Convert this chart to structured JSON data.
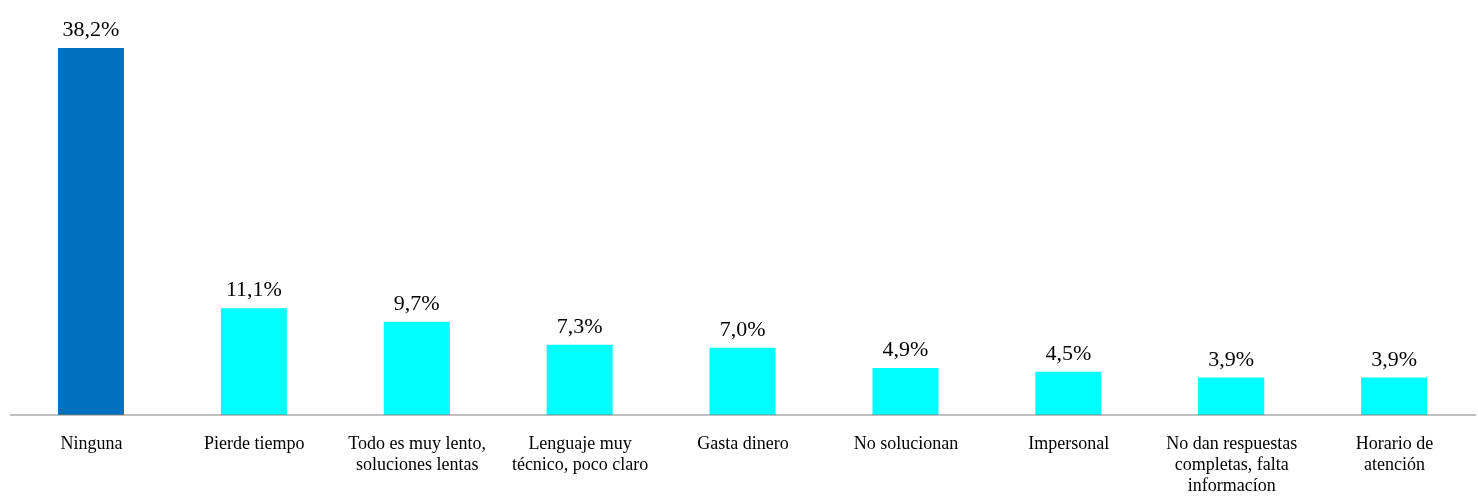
{
  "chart_data": {
    "type": "bar",
    "categories": [
      "Ninguna",
      "Pierde tiempo",
      "Todo es muy lento, soluciones lentas",
      "Lenguaje muy técnico, poco claro",
      "Gasta dinero",
      "No solucionan",
      "Impersonal",
      "No dan respuestas completas, falta informacíon",
      "Horario de atención"
    ],
    "values": [
      38.2,
      11.1,
      9.7,
      7.3,
      7.0,
      4.9,
      4.5,
      3.9,
      3.9
    ],
    "value_labels": [
      "38,2%",
      "11,1%",
      "9,7%",
      "7,3%",
      "7,0%",
      "4,9%",
      "4,5%",
      "3,9%",
      "3,9%"
    ],
    "colors": [
      "#0070c0",
      "#00ffff",
      "#00ffff",
      "#00ffff",
      "#00ffff",
      "#00ffff",
      "#00ffff",
      "#00ffff",
      "#00ffff"
    ]
  }
}
